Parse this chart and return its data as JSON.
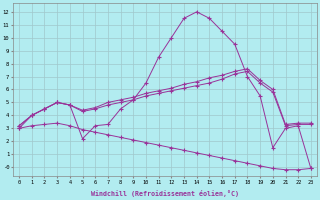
{
  "bg_color": "#b2ecf0",
  "grid_color": "#a0c8cc",
  "line_color": "#993399",
  "xlabel": "Windchill (Refroidissement éolien,°C)",
  "xlim": [
    -0.5,
    23.5
  ],
  "ylim": [
    -0.7,
    12.7
  ],
  "xticks": [
    0,
    1,
    2,
    3,
    4,
    5,
    6,
    7,
    8,
    9,
    10,
    11,
    12,
    13,
    14,
    15,
    16,
    17,
    18,
    19,
    20,
    21,
    22,
    23
  ],
  "yticks": [
    0,
    1,
    2,
    3,
    4,
    5,
    6,
    7,
    8,
    9,
    10,
    11,
    12
  ],
  "ytick_labels": [
    "-0",
    "1",
    "2",
    "3",
    "4",
    "5",
    "6",
    "7",
    "8",
    "9",
    "10",
    "11",
    "12"
  ],
  "lines": [
    [
      3.0,
      4.0,
      4.5,
      5.0,
      4.8,
      2.2,
      3.2,
      3.3,
      4.5,
      5.2,
      6.5,
      8.5,
      10.0,
      11.5,
      12.0,
      11.5,
      10.5,
      9.5,
      7.0,
      5.5,
      1.5,
      3.0,
      3.2,
      -0.1
    ],
    [
      3.2,
      4.0,
      4.5,
      5.0,
      4.8,
      4.3,
      4.5,
      4.8,
      5.0,
      5.2,
      5.5,
      5.7,
      5.9,
      6.1,
      6.3,
      6.5,
      6.8,
      7.2,
      7.4,
      6.5,
      5.8,
      3.2,
      3.3,
      3.3
    ],
    [
      3.2,
      4.0,
      4.5,
      5.0,
      4.8,
      4.4,
      4.6,
      5.0,
      5.2,
      5.4,
      5.7,
      5.9,
      6.1,
      6.4,
      6.6,
      6.9,
      7.1,
      7.4,
      7.6,
      6.7,
      6.0,
      3.3,
      3.4,
      3.4
    ],
    [
      3.0,
      3.2,
      3.3,
      3.4,
      3.2,
      2.9,
      2.7,
      2.5,
      2.3,
      2.1,
      1.9,
      1.7,
      1.5,
      1.3,
      1.1,
      0.9,
      0.7,
      0.5,
      0.3,
      0.1,
      -0.1,
      -0.2,
      -0.2,
      -0.1
    ]
  ]
}
